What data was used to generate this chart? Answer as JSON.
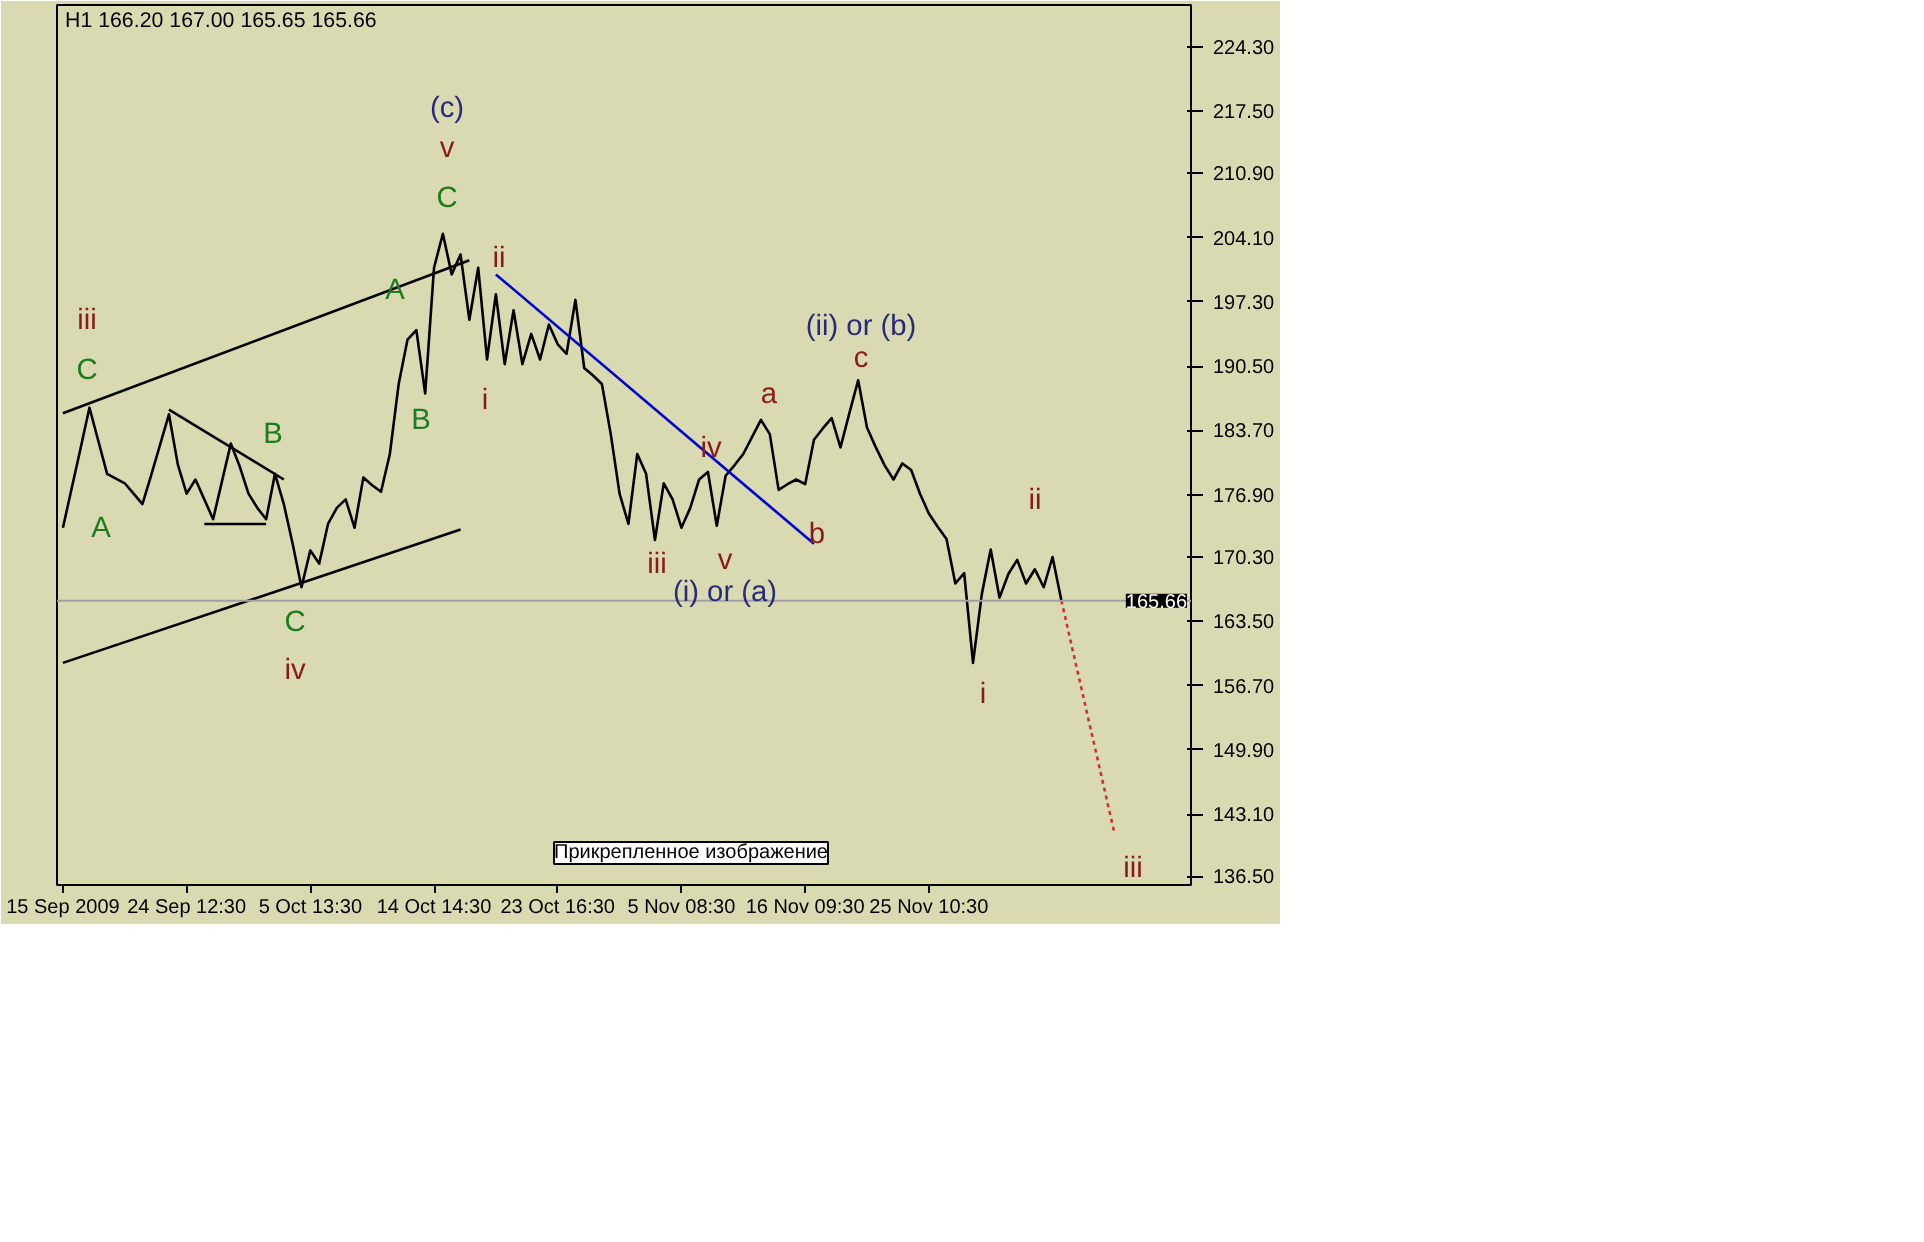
{
  "chart_data": {
    "type": "line",
    "title": "H1  166.20 167.00 165.65 165.66",
    "categories": [
      "15 Sep 2009",
      null,
      null,
      null,
      null,
      null,
      null,
      null,
      null,
      null,
      null,
      null,
      null,
      null,
      "24 Sep 12:30",
      null,
      null,
      null,
      null,
      null,
      null,
      null,
      null,
      null,
      null,
      null,
      null,
      null,
      "5 Oct 13:30",
      null,
      null,
      null,
      null,
      null,
      null,
      null,
      null,
      null,
      null,
      null,
      null,
      null,
      "14 Oct 14:30",
      null,
      null,
      null,
      null,
      null,
      null,
      null,
      null,
      null,
      null,
      null,
      null,
      null,
      "23 Oct 16:30",
      null,
      null,
      null,
      null,
      null,
      null,
      null,
      null,
      null,
      null,
      null,
      null,
      null,
      "5 Nov 08:30",
      null,
      null,
      null,
      null,
      null,
      null,
      null,
      null,
      null,
      null,
      null,
      null,
      null,
      "16 Nov 09:30",
      null,
      null,
      null,
      null,
      null,
      null,
      null,
      null,
      null,
      null,
      null,
      null,
      null,
      "25 Nov 10:30",
      null,
      null,
      null,
      null,
      null,
      null,
      null,
      null,
      null,
      null,
      null,
      null,
      null,
      null,
      null,
      null,
      null,
      null,
      null,
      null,
      null,
      null,
      null,
      null,
      null,
      null,
      null,
      null,
      null
    ],
    "ylim": [
      135.6,
      228.7
    ],
    "yticks": [
      {
        "value": 224.3,
        "label": "224.30"
      },
      {
        "value": 217.5,
        "label": "217.50"
      },
      {
        "value": 210.9,
        "label": "210.90"
      },
      {
        "value": 204.1,
        "label": "204.10"
      },
      {
        "value": 197.3,
        "label": "197.30"
      },
      {
        "value": 190.5,
        "label": "190.50"
      },
      {
        "value": 183.7,
        "label": "183.70"
      },
      {
        "value": 176.9,
        "label": "176.90"
      },
      {
        "value": 170.3,
        "label": "170.30"
      },
      {
        "value": 163.5,
        "label": "163.50"
      },
      {
        "value": 156.7,
        "label": "156.70"
      },
      {
        "value": 149.9,
        "label": "149.90"
      },
      {
        "value": 143.1,
        "label": "143.10"
      },
      {
        "value": 136.5,
        "label": "136.50"
      }
    ],
    "grid": false,
    "series": [
      {
        "color": "#000000",
        "values": [
          173.4,
          177.6,
          181.8,
          186.1,
          182.6,
          179.1,
          178.6,
          178.1,
          177.0,
          175.9,
          179.0,
          182.2,
          185.4,
          180.1,
          177.0,
          178.5,
          176.4,
          174.3,
          178.3,
          182.3,
          179.9,
          177.0,
          175.5,
          174.3,
          179.1,
          175.9,
          171.7,
          167.1,
          171.0,
          169.6,
          173.8,
          175.5,
          176.4,
          173.4,
          178.7,
          177.9,
          177.2,
          181.2,
          188.6,
          193.3,
          194.3,
          187.6,
          200.9,
          204.5,
          200.2,
          202.3,
          195.4,
          200.9,
          191.2,
          198.1,
          190.7,
          196.4,
          190.7,
          193.9,
          191.2,
          194.9,
          192.8,
          191.8,
          197.5,
          190.3,
          189.5,
          188.6,
          183.3,
          177.0,
          173.8,
          181.2,
          179.1,
          172.1,
          178.1,
          176.4,
          173.4,
          175.5,
          178.5,
          179.3,
          173.6,
          178.9,
          180.0,
          181.2,
          183.0,
          184.8,
          183.3,
          177.4,
          178.0,
          178.5,
          178.0,
          182.7,
          183.9,
          185.0,
          181.9,
          185.5,
          189.0,
          184.0,
          181.9,
          180.0,
          178.5,
          180.2,
          179.5,
          177.0,
          174.9,
          173.5,
          172.2,
          167.5,
          168.6,
          159.1,
          166.4,
          171.1,
          166.0,
          168.5,
          170.0,
          167.5,
          169.0,
          167.1,
          170.3,
          165.7,
          null,
          null,
          null,
          null,
          null,
          null,
          null,
          null,
          null,
          null,
          null,
          null,
          null,
          null
        ]
      },
      {
        "color": "#cc3333",
        "line_style": "dotted",
        "values": [
          null,
          null,
          null,
          null,
          null,
          null,
          null,
          null,
          null,
          null,
          null,
          null,
          null,
          null,
          null,
          null,
          null,
          null,
          null,
          null,
          null,
          null,
          null,
          null,
          null,
          null,
          null,
          null,
          null,
          null,
          null,
          null,
          null,
          null,
          null,
          null,
          null,
          null,
          null,
          null,
          null,
          null,
          null,
          null,
          null,
          null,
          null,
          null,
          null,
          null,
          null,
          null,
          null,
          null,
          null,
          null,
          null,
          null,
          null,
          null,
          null,
          null,
          null,
          null,
          null,
          null,
          null,
          null,
          null,
          null,
          null,
          null,
          null,
          null,
          null,
          null,
          null,
          null,
          null,
          null,
          null,
          null,
          null,
          null,
          null,
          null,
          null,
          null,
          null,
          null,
          null,
          null,
          null,
          null,
          null,
          null,
          null,
          null,
          null,
          null,
          null,
          null,
          null,
          null,
          null,
          null,
          null,
          null,
          null,
          null,
          null,
          null,
          null,
          165.7,
          null,
          null,
          null,
          null,
          null,
          141.1,
          null,
          null,
          null,
          null,
          null,
          null,
          null,
          null
        ]
      },
      {
        "color": "#000000",
        "values": [
          185.5,
          null,
          null,
          null,
          null,
          null,
          null,
          null,
          null,
          null,
          null,
          null,
          null,
          null,
          null,
          null,
          null,
          null,
          null,
          null,
          null,
          null,
          null,
          null,
          null,
          null,
          null,
          null,
          null,
          null,
          null,
          null,
          null,
          null,
          null,
          null,
          null,
          null,
          null,
          null,
          null,
          null,
          null,
          null,
          null,
          null,
          201.7,
          null,
          null,
          null,
          null,
          null,
          null,
          null,
          null,
          null,
          null,
          null,
          null,
          null,
          null,
          null,
          null,
          null,
          null,
          null,
          null,
          null,
          null,
          null,
          null,
          null,
          null,
          null,
          null,
          null,
          null,
          null,
          null,
          null,
          null,
          null,
          null,
          null,
          null,
          null,
          null,
          null,
          null,
          null,
          null,
          null,
          null,
          null,
          null,
          null,
          null,
          null,
          null,
          null,
          null,
          null,
          null,
          null,
          null,
          null,
          null,
          null,
          null,
          null,
          null,
          null,
          null,
          null,
          null,
          null,
          null,
          null,
          null,
          null,
          null,
          null,
          null,
          null,
          null,
          null,
          null,
          null
        ]
      },
      {
        "color": "#000000",
        "values": [
          159.1,
          null,
          null,
          null,
          null,
          null,
          null,
          null,
          null,
          null,
          null,
          null,
          null,
          null,
          null,
          null,
          null,
          null,
          null,
          null,
          null,
          null,
          null,
          null,
          null,
          null,
          null,
          null,
          null,
          null,
          null,
          null,
          null,
          null,
          null,
          null,
          null,
          null,
          null,
          null,
          null,
          null,
          null,
          null,
          null,
          173.2,
          null,
          null,
          null,
          null,
          null,
          null,
          null,
          null,
          null,
          null,
          null,
          null,
          null,
          null,
          null,
          null,
          null,
          null,
          null,
          null,
          null,
          null,
          null,
          null,
          null,
          null,
          null,
          null,
          null,
          null,
          null,
          null,
          null,
          null,
          null,
          null,
          null,
          null,
          null,
          null,
          null,
          null,
          null,
          null,
          null,
          null,
          null,
          null,
          null,
          null,
          null,
          null,
          null,
          null,
          null,
          null,
          null,
          null,
          null,
          null,
          null,
          null,
          null,
          null,
          null,
          null,
          null,
          null,
          null,
          null,
          null,
          null,
          null,
          null,
          null,
          null,
          null,
          null,
          null,
          null,
          null,
          null
        ]
      },
      {
        "color": "#000000",
        "values": [
          null,
          null,
          null,
          null,
          null,
          null,
          null,
          null,
          null,
          null,
          null,
          null,
          185.9,
          null,
          null,
          null,
          null,
          null,
          null,
          null,
          null,
          null,
          null,
          null,
          null,
          178.5,
          null,
          null,
          null,
          null,
          null,
          null,
          null,
          null,
          null,
          null,
          null,
          null,
          null,
          null,
          null,
          null,
          null,
          null,
          null,
          null,
          null,
          null,
          null,
          null,
          null,
          null,
          null,
          null,
          null,
          null,
          null,
          null,
          null,
          null,
          null,
          null,
          null,
          null,
          null,
          null,
          null,
          null,
          null,
          null,
          null,
          null,
          null,
          null,
          null,
          null,
          null,
          null,
          null,
          null,
          null,
          null,
          null,
          null,
          null,
          null,
          null,
          null,
          null,
          null,
          null,
          null,
          null,
          null,
          null,
          null,
          null,
          null,
          null,
          null,
          null,
          null,
          null,
          null,
          null,
          null,
          null,
          null,
          null,
          null,
          null,
          null,
          null,
          null,
          null,
          null,
          null,
          null,
          null,
          null,
          null,
          null,
          null,
          null,
          null,
          null,
          null,
          null
        ]
      },
      {
        "color": "#000000",
        "values": [
          null,
          null,
          null,
          null,
          null,
          null,
          null,
          null,
          null,
          null,
          null,
          null,
          null,
          null,
          null,
          null,
          173.8,
          null,
          null,
          null,
          null,
          null,
          null,
          173.8,
          null,
          null,
          null,
          null,
          null,
          null,
          null,
          null,
          null,
          null,
          null,
          null,
          null,
          null,
          null,
          null,
          null,
          null,
          null,
          null,
          null,
          null,
          null,
          null,
          null,
          null,
          null,
          null,
          null,
          null,
          null,
          null,
          null,
          null,
          null,
          null,
          null,
          null,
          null,
          null,
          null,
          null,
          null,
          null,
          null,
          null,
          null,
          null,
          null,
          null,
          null,
          null,
          null,
          null,
          null,
          null,
          null,
          null,
          null,
          null,
          null,
          null,
          null,
          null,
          null,
          null,
          null,
          null,
          null,
          null,
          null,
          null,
          null,
          null,
          null,
          null,
          null,
          null,
          null,
          null,
          null,
          null,
          null,
          null,
          null,
          null,
          null,
          null,
          null,
          null,
          null,
          null,
          null,
          null,
          null,
          null,
          null,
          null,
          null,
          null,
          null,
          null,
          null,
          null
        ]
      },
      {
        "color": "#0000cc",
        "values": [
          null,
          null,
          null,
          null,
          null,
          null,
          null,
          null,
          null,
          null,
          null,
          null,
          null,
          null,
          null,
          null,
          null,
          null,
          null,
          null,
          null,
          null,
          null,
          null,
          null,
          null,
          null,
          null,
          null,
          null,
          null,
          null,
          null,
          null,
          null,
          null,
          null,
          null,
          null,
          null,
          null,
          null,
          null,
          null,
          null,
          null,
          null,
          null,
          null,
          200.2,
          null,
          null,
          null,
          null,
          null,
          null,
          null,
          null,
          null,
          null,
          null,
          null,
          null,
          null,
          null,
          null,
          null,
          null,
          null,
          null,
          null,
          null,
          null,
          null,
          null,
          null,
          null,
          null,
          null,
          null,
          null,
          null,
          null,
          null,
          null,
          171.7,
          null,
          null,
          null,
          null,
          null,
          null,
          null,
          null,
          null,
          null,
          null,
          null,
          null,
          null,
          null,
          null,
          null,
          null,
          null,
          null,
          null,
          null,
          null,
          null,
          null,
          null,
          null,
          null,
          null,
          null,
          null,
          null,
          null,
          null,
          null,
          null,
          null,
          null,
          null,
          null,
          null,
          null
        ]
      }
    ],
    "ref_lines": [
      {
        "axis": "y",
        "value": 165.66,
        "label": "165.66",
        "color": "#a0a0a0"
      }
    ],
    "annotations": [
      "iii",
      "C",
      "A",
      "B",
      "C",
      "iv",
      "A",
      "B",
      "C",
      "v",
      "(c)",
      "ii",
      "i",
      "iii",
      "v",
      "(i) or (a)",
      "iv",
      "a",
      "b",
      "c",
      "(ii) or (b)",
      "ii",
      "i",
      "iii",
      "Прикрепленное изображение"
    ]
  }
}
